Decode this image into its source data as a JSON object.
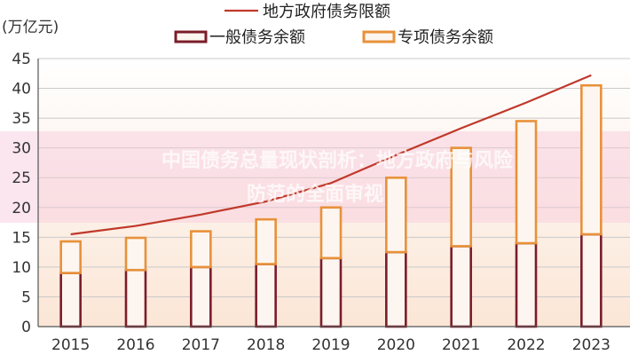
{
  "chart_data": {
    "type": "bar",
    "unit_label": "(万亿元)",
    "categories": [
      "2015",
      "2016",
      "2017",
      "2018",
      "2019",
      "2020",
      "2021",
      "2022",
      "2023"
    ],
    "series": [
      {
        "name": "一般债务余额",
        "kind": "stacked-bar",
        "color": "#7b1c2a",
        "values": [
          9.0,
          9.5,
          10.0,
          10.5,
          11.5,
          12.5,
          13.5,
          14.0,
          15.5
        ]
      },
      {
        "name": "专项债务余额",
        "kind": "stacked-bar",
        "color": "#e8913a",
        "values": [
          5.3,
          5.4,
          6.0,
          7.5,
          8.5,
          12.5,
          16.5,
          20.5,
          25.0
        ]
      },
      {
        "name": "地方政府债务限额",
        "kind": "line",
        "color": "#c0392b",
        "values": [
          15.5,
          16.9,
          18.8,
          21.0,
          24.1,
          28.8,
          33.3,
          37.6,
          42.2
        ]
      }
    ],
    "ylim": [
      0,
      45
    ],
    "yticks": [
      0,
      5,
      10,
      15,
      20,
      25,
      30,
      35,
      40,
      45
    ],
    "grid": true,
    "legend_position": "top-center"
  },
  "watermark": {
    "line1": "中国债务总量现状剖析：地方政府与风险",
    "line2": "防范的全面审视"
  }
}
